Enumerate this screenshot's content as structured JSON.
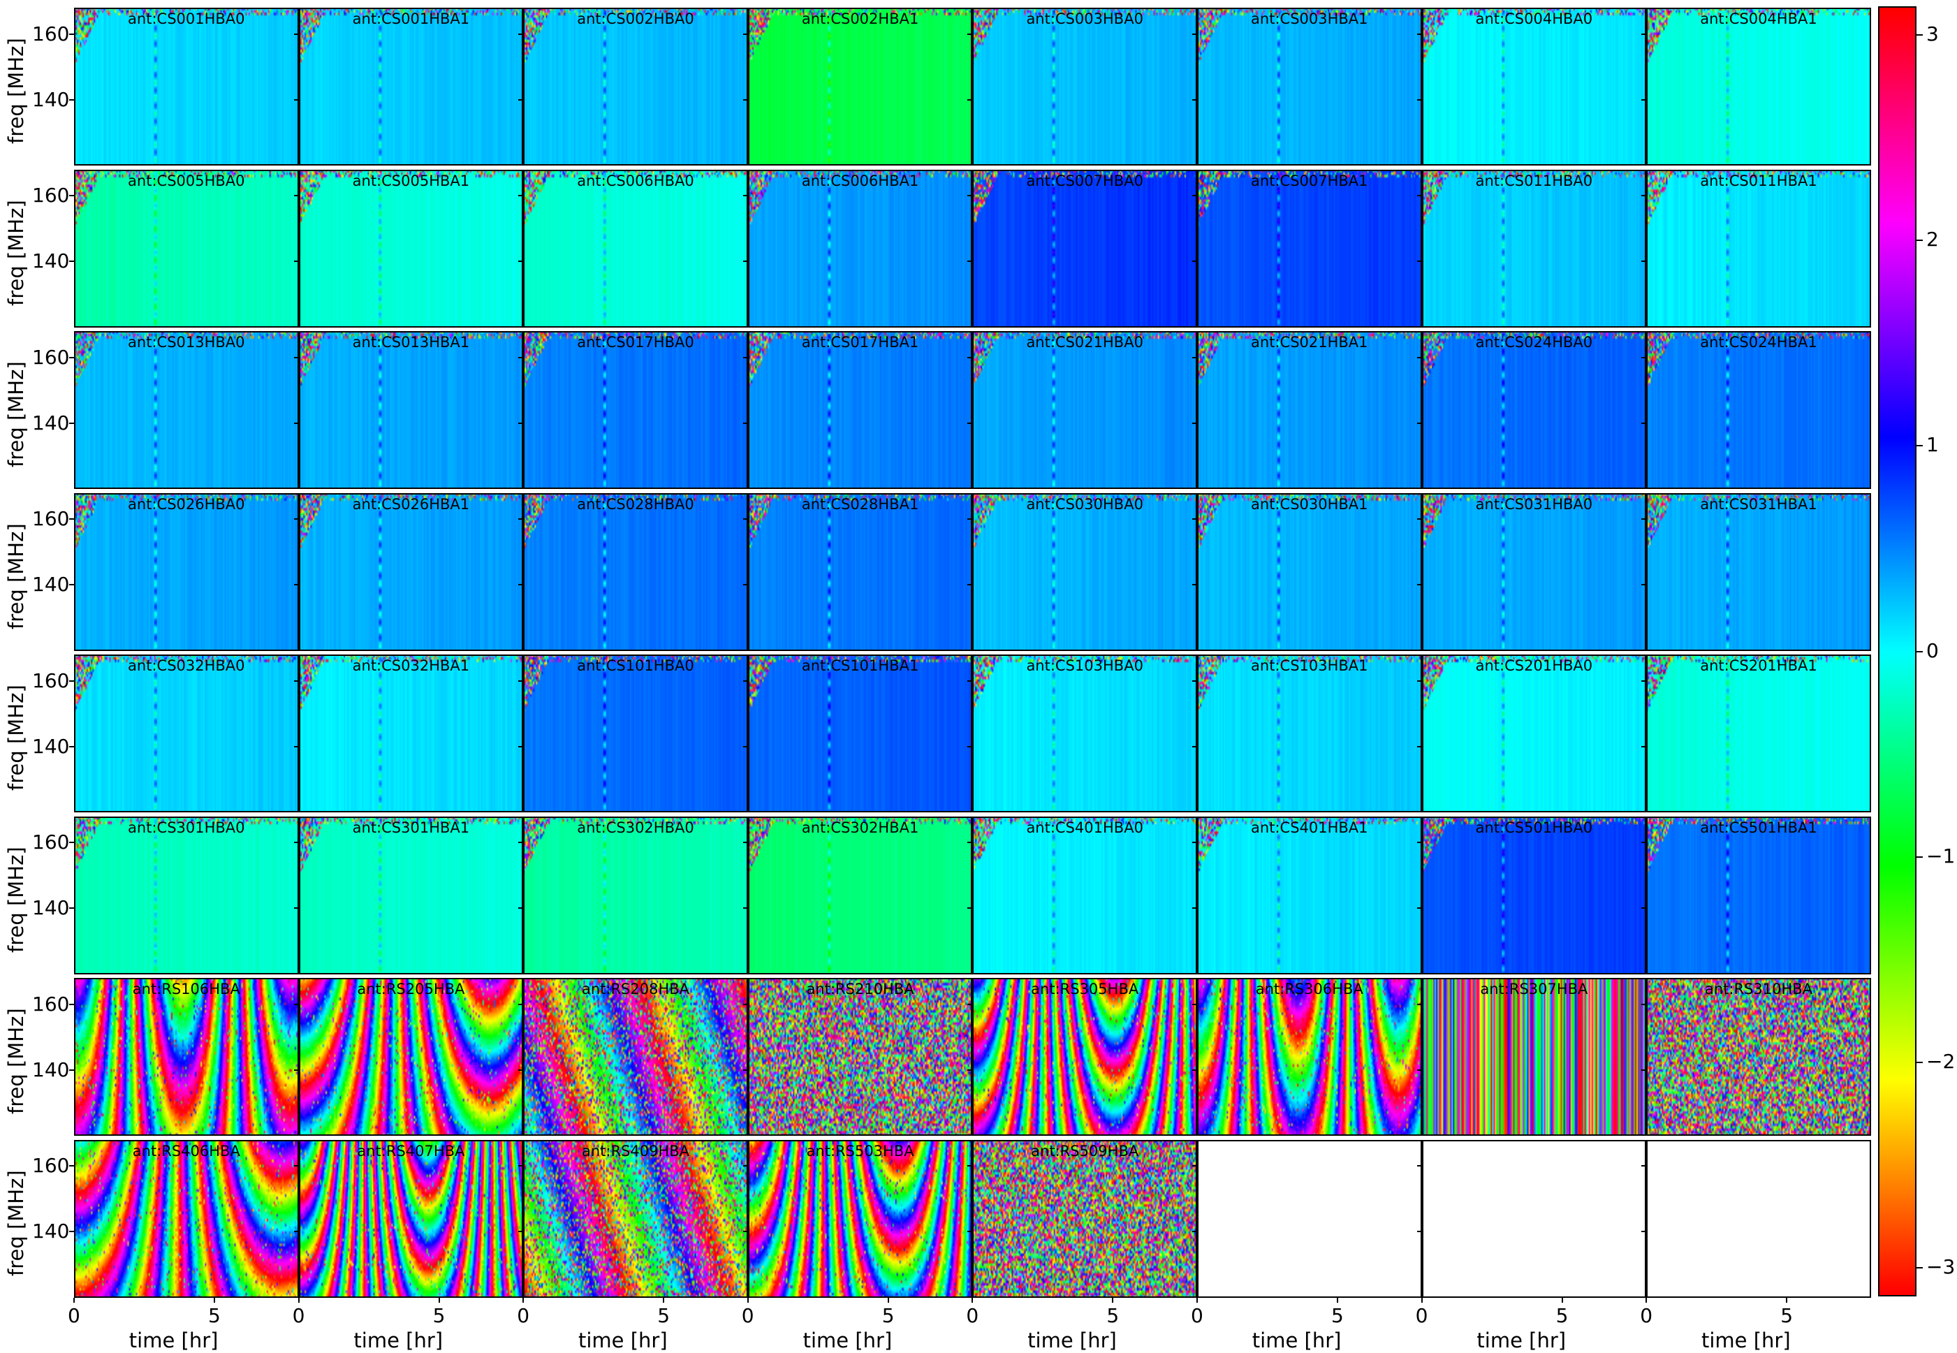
{
  "chart_data": {
    "type": "heatmap",
    "layout": {
      "rows": 8,
      "cols": 8
    },
    "xlabel": "time [hr]",
    "ylabel": "freq [MHz]",
    "xlim": [
      0,
      8
    ],
    "ylim": [
      120,
      168
    ],
    "xticks": [
      0,
      5
    ],
    "yticks": [
      140,
      160
    ],
    "colormap": "hsv",
    "colorbar": {
      "range": [
        -3.14,
        3.14
      ],
      "ticks": [
        3,
        2,
        1,
        0,
        -1,
        -2,
        -3
      ],
      "tick_labels": [
        "3",
        "2",
        "1",
        "0",
        "−1",
        "−2",
        "−3"
      ]
    },
    "panels": [
      {
        "label": "ant:CS001HBA0",
        "mean_phase": 0.1,
        "pattern": "core"
      },
      {
        "label": "ant:CS001HBA1",
        "mean_phase": 0.15,
        "pattern": "core"
      },
      {
        "label": "ant:CS002HBA0",
        "mean_phase": 0.2,
        "pattern": "core"
      },
      {
        "label": "ant:CS002HBA1",
        "mean_phase": -0.8,
        "pattern": "core"
      },
      {
        "label": "ant:CS003HBA0",
        "mean_phase": 0.2,
        "pattern": "core"
      },
      {
        "label": "ant:CS003HBA1",
        "mean_phase": 0.25,
        "pattern": "core"
      },
      {
        "label": "ant:CS004HBA0",
        "mean_phase": 0.0,
        "pattern": "core"
      },
      {
        "label": "ant:CS004HBA1",
        "mean_phase": -0.15,
        "pattern": "core"
      },
      {
        "label": "ant:CS005HBA0",
        "mean_phase": -0.35,
        "pattern": "core"
      },
      {
        "label": "ant:CS005HBA1",
        "mean_phase": -0.2,
        "pattern": "core"
      },
      {
        "label": "ant:CS006HBA0",
        "mean_phase": -0.2,
        "pattern": "core"
      },
      {
        "label": "ant:CS006HBA1",
        "mean_phase": 0.35,
        "pattern": "core"
      },
      {
        "label": "ant:CS007HBA0",
        "mean_phase": 0.75,
        "pattern": "core"
      },
      {
        "label": "ant:CS007HBA1",
        "mean_phase": 0.7,
        "pattern": "core"
      },
      {
        "label": "ant:CS011HBA0",
        "mean_phase": 0.15,
        "pattern": "core"
      },
      {
        "label": "ant:CS011HBA1",
        "mean_phase": 0.05,
        "pattern": "core"
      },
      {
        "label": "ant:CS013HBA0",
        "mean_phase": 0.25,
        "pattern": "core"
      },
      {
        "label": "ant:CS013HBA1",
        "mean_phase": 0.3,
        "pattern": "core"
      },
      {
        "label": "ant:CS017HBA0",
        "mean_phase": 0.5,
        "pattern": "core"
      },
      {
        "label": "ant:CS017HBA1",
        "mean_phase": 0.45,
        "pattern": "core"
      },
      {
        "label": "ant:CS021HBA0",
        "mean_phase": 0.35,
        "pattern": "core"
      },
      {
        "label": "ant:CS021HBA1",
        "mean_phase": 0.35,
        "pattern": "core"
      },
      {
        "label": "ant:CS024HBA0",
        "mean_phase": 0.55,
        "pattern": "core"
      },
      {
        "label": "ant:CS024HBA1",
        "mean_phase": 0.5,
        "pattern": "core"
      },
      {
        "label": "ant:CS026HBA0",
        "mean_phase": 0.3,
        "pattern": "core"
      },
      {
        "label": "ant:CS026HBA1",
        "mean_phase": 0.3,
        "pattern": "core"
      },
      {
        "label": "ant:CS028HBA0",
        "mean_phase": 0.5,
        "pattern": "core"
      },
      {
        "label": "ant:CS028HBA1",
        "mean_phase": 0.5,
        "pattern": "core"
      },
      {
        "label": "ant:CS030HBA0",
        "mean_phase": 0.25,
        "pattern": "core"
      },
      {
        "label": "ant:CS030HBA1",
        "mean_phase": 0.25,
        "pattern": "core"
      },
      {
        "label": "ant:CS031HBA0",
        "mean_phase": 0.3,
        "pattern": "core"
      },
      {
        "label": "ant:CS031HBA1",
        "mean_phase": 0.3,
        "pattern": "core"
      },
      {
        "label": "ant:CS032HBA0",
        "mean_phase": 0.1,
        "pattern": "core"
      },
      {
        "label": "ant:CS032HBA1",
        "mean_phase": 0.05,
        "pattern": "core"
      },
      {
        "label": "ant:CS101HBA0",
        "mean_phase": 0.55,
        "pattern": "core"
      },
      {
        "label": "ant:CS101HBA1",
        "mean_phase": 0.6,
        "pattern": "core"
      },
      {
        "label": "ant:CS103HBA0",
        "mean_phase": 0.05,
        "pattern": "core"
      },
      {
        "label": "ant:CS103HBA1",
        "mean_phase": 0.1,
        "pattern": "core"
      },
      {
        "label": "ant:CS201HBA0",
        "mean_phase": -0.05,
        "pattern": "core"
      },
      {
        "label": "ant:CS201HBA1",
        "mean_phase": -0.15,
        "pattern": "core"
      },
      {
        "label": "ant:CS301HBA0",
        "mean_phase": -0.3,
        "pattern": "core"
      },
      {
        "label": "ant:CS301HBA1",
        "mean_phase": -0.25,
        "pattern": "core"
      },
      {
        "label": "ant:CS302HBA0",
        "mean_phase": -0.4,
        "pattern": "core"
      },
      {
        "label": "ant:CS302HBA1",
        "mean_phase": -0.6,
        "pattern": "core"
      },
      {
        "label": "ant:CS401HBA0",
        "mean_phase": 0.0,
        "pattern": "core"
      },
      {
        "label": "ant:CS401HBA1",
        "mean_phase": 0.05,
        "pattern": "core"
      },
      {
        "label": "ant:CS501HBA0",
        "mean_phase": 0.7,
        "pattern": "core"
      },
      {
        "label": "ant:CS501HBA1",
        "mean_phase": 0.55,
        "pattern": "core"
      },
      {
        "label": "ant:RS106HBA",
        "mean_phase": 0,
        "pattern": "wrap"
      },
      {
        "label": "ant:RS205HBA",
        "mean_phase": 0,
        "pattern": "wrap"
      },
      {
        "label": "ant:RS208HBA",
        "mean_phase": 0,
        "pattern": "mixed"
      },
      {
        "label": "ant:RS210HBA",
        "mean_phase": 0,
        "pattern": "noise"
      },
      {
        "label": "ant:RS305HBA",
        "mean_phase": 0,
        "pattern": "wrap"
      },
      {
        "label": "ant:RS306HBA",
        "mean_phase": 0,
        "pattern": "wrap"
      },
      {
        "label": "ant:RS307HBA",
        "mean_phase": 0,
        "pattern": "stripes"
      },
      {
        "label": "ant:RS310HBA",
        "mean_phase": 0,
        "pattern": "noise"
      },
      {
        "label": "ant:RS406HBA",
        "mean_phase": 0,
        "pattern": "wrap"
      },
      {
        "label": "ant:RS407HBA",
        "mean_phase": 0,
        "pattern": "wrap"
      },
      {
        "label": "ant:RS409HBA",
        "mean_phase": 0,
        "pattern": "mixed"
      },
      {
        "label": "ant:RS503HBA",
        "mean_phase": 0,
        "pattern": "wrap"
      },
      {
        "label": "ant:RS509HBA",
        "mean_phase": 0,
        "pattern": "noise"
      },
      {
        "label": "",
        "mean_phase": null,
        "pattern": "empty"
      },
      {
        "label": "",
        "mean_phase": null,
        "pattern": "empty"
      },
      {
        "label": "",
        "mean_phase": null,
        "pattern": "empty"
      }
    ]
  }
}
